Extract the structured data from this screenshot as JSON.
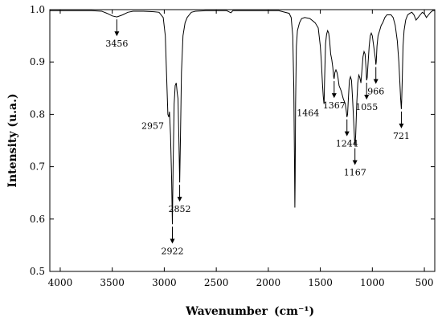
{
  "chart_data": {
    "type": "line",
    "title": "",
    "xlabel": "Wavenumber",
    "xlabel_unit": "(cm⁻¹)",
    "ylabel": "Intensity (u.a.)",
    "xlim": [
      4100,
      400
    ],
    "ylim": [
      0.5,
      1.0
    ],
    "x_ticks": [
      4000,
      3500,
      3000,
      2500,
      2000,
      1500,
      1000,
      500
    ],
    "y_ticks": [
      0.5,
      0.6,
      0.7,
      0.8,
      0.9,
      1.0
    ],
    "y_tick_labels": [
      "0.5",
      "0.6",
      "0.7",
      "0.8",
      "0.9",
      "1.0"
    ],
    "grid": false,
    "legend": "none",
    "series": [
      {
        "x": [
          4100,
          4000,
          3900,
          3800,
          3700,
          3600,
          3550,
          3500,
          3456,
          3400,
          3350,
          3300,
          3200,
          3100,
          3050,
          3010,
          2990,
          2975,
          2965,
          2957,
          2950,
          2940,
          2930,
          2922,
          2915,
          2905,
          2895,
          2885,
          2875,
          2868,
          2860,
          2852,
          2845,
          2835,
          2820,
          2800,
          2780,
          2760,
          2740,
          2700,
          2600,
          2500,
          2400,
          2360,
          2340,
          2300,
          2200,
          2100,
          2000,
          1900,
          1800,
          1780,
          1765,
          1755,
          1748,
          1745,
          1742,
          1738,
          1730,
          1720,
          1700,
          1680,
          1650,
          1600,
          1550,
          1520,
          1500,
          1490,
          1480,
          1472,
          1466,
          1464,
          1460,
          1450,
          1440,
          1430,
          1420,
          1410,
          1400,
          1390,
          1380,
          1375,
          1370,
          1367,
          1360,
          1350,
          1340,
          1330,
          1320,
          1300,
          1280,
          1260,
          1250,
          1244,
          1238,
          1230,
          1220,
          1210,
          1200,
          1190,
          1180,
          1170,
          1167,
          1160,
          1150,
          1140,
          1130,
          1120,
          1110,
          1100,
          1090,
          1080,
          1070,
          1060,
          1055,
          1050,
          1040,
          1030,
          1020,
          1010,
          1000,
          990,
          980,
          970,
          966,
          962,
          955,
          945,
          930,
          915,
          900,
          880,
          860,
          840,
          820,
          800,
          780,
          760,
          745,
          735,
          728,
          723,
          721,
          718,
          712,
          705,
          695,
          680,
          660,
          640,
          620,
          600,
          580,
          560,
          540,
          520,
          500,
          480,
          460,
          440,
          420,
          400
        ],
        "y": [
          0.998,
          0.998,
          0.998,
          0.998,
          0.998,
          0.997,
          0.993,
          0.988,
          0.986,
          0.99,
          0.995,
          0.997,
          0.997,
          0.996,
          0.995,
          0.985,
          0.95,
          0.86,
          0.8,
          0.795,
          0.805,
          0.76,
          0.68,
          0.59,
          0.7,
          0.82,
          0.855,
          0.86,
          0.84,
          0.83,
          0.76,
          0.67,
          0.75,
          0.88,
          0.95,
          0.975,
          0.985,
          0.99,
          0.995,
          0.997,
          0.998,
          0.998,
          0.998,
          0.994,
          0.998,
          0.998,
          0.998,
          0.998,
          0.998,
          0.998,
          0.993,
          0.985,
          0.95,
          0.85,
          0.7,
          0.622,
          0.68,
          0.82,
          0.93,
          0.96,
          0.975,
          0.983,
          0.985,
          0.983,
          0.975,
          0.965,
          0.93,
          0.9,
          0.86,
          0.835,
          0.822,
          0.82,
          0.86,
          0.935,
          0.953,
          0.96,
          0.955,
          0.94,
          0.915,
          0.905,
          0.89,
          0.878,
          0.87,
          0.868,
          0.88,
          0.885,
          0.88,
          0.87,
          0.855,
          0.845,
          0.83,
          0.82,
          0.805,
          0.795,
          0.8,
          0.83,
          0.865,
          0.872,
          0.865,
          0.83,
          0.79,
          0.748,
          0.74,
          0.76,
          0.82,
          0.86,
          0.875,
          0.87,
          0.86,
          0.885,
          0.91,
          0.92,
          0.915,
          0.885,
          0.865,
          0.87,
          0.9,
          0.93,
          0.95,
          0.955,
          0.95,
          0.935,
          0.92,
          0.905,
          0.895,
          0.9,
          0.93,
          0.95,
          0.96,
          0.97,
          0.975,
          0.985,
          0.99,
          0.99,
          0.99,
          0.985,
          0.97,
          0.94,
          0.9,
          0.86,
          0.83,
          0.815,
          0.81,
          0.825,
          0.87,
          0.93,
          0.96,
          0.98,
          0.99,
          0.993,
          0.995,
          0.99,
          0.98,
          0.985,
          0.99,
          0.995,
          0.992,
          0.985,
          0.99,
          0.995,
          0.998,
          0.998
        ]
      }
    ],
    "peak_labels": [
      {
        "label": "3456",
        "x": 3456,
        "y": 0.986,
        "side": "below"
      },
      {
        "label": "2957",
        "x": 2957,
        "y": 0.795,
        "side": "left"
      },
      {
        "label": "2922",
        "x": 2922,
        "y": 0.59,
        "side": "below"
      },
      {
        "label": "2852",
        "x": 2852,
        "y": 0.67,
        "side": "below"
      },
      {
        "label": "1464",
        "x": 1464,
        "y": 0.82,
        "side": "left"
      },
      {
        "label": "1367",
        "x": 1367,
        "y": 0.868,
        "side": "below"
      },
      {
        "label": "1244",
        "x": 1244,
        "y": 0.795,
        "side": "below"
      },
      {
        "label": "1167",
        "x": 1167,
        "y": 0.74,
        "side": "below"
      },
      {
        "label": "1055",
        "x": 1055,
        "y": 0.865,
        "side": "below"
      },
      {
        "label": "966",
        "x": 966,
        "y": 0.895,
        "side": "below"
      },
      {
        "label": "721",
        "x": 721,
        "y": 0.81,
        "side": "below"
      }
    ]
  }
}
